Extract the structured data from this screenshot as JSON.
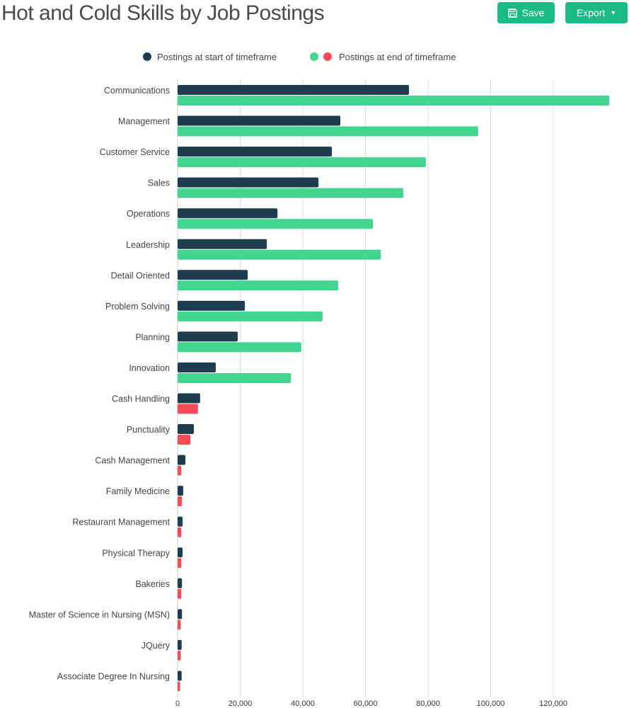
{
  "header": {
    "title": "Hot and Cold Skills by Job Postings",
    "save_label": "Save",
    "export_label": "Export"
  },
  "colors": {
    "start": "#1e3d4f",
    "end_up": "#43d590",
    "end_down": "#f64a57",
    "grid": "#dddddd"
  },
  "chart_data": {
    "type": "bar",
    "orientation": "horizontal",
    "title": "Hot and Cold Skills by Job Postings",
    "legend": [
      "Postings at start of timeframe",
      "Postings at end of timeframe"
    ],
    "legend_position": "top",
    "categories": [
      "Communications",
      "Management",
      "Customer Service",
      "Sales",
      "Operations",
      "Leadership",
      "Detail Oriented",
      "Problem Solving",
      "Planning",
      "Innovation",
      "Cash Handling",
      "Punctuality",
      "Cash Management",
      "Family Medicine",
      "Restaurant Management",
      "Physical Therapy",
      "Bakeries",
      "Master of Science in Nursing (MSN)",
      "JQuery",
      "Associate Degree In Nursing"
    ],
    "series": [
      {
        "name": "Postings at start of timeframe",
        "values": [
          73900,
          52000,
          49300,
          45000,
          31900,
          28500,
          22400,
          21500,
          19200,
          12200,
          7200,
          5200,
          2500,
          1800,
          1600,
          1600,
          1400,
          1400,
          1300,
          1300
        ]
      },
      {
        "name": "Postings at end of timeframe",
        "values": [
          137900,
          96000,
          79300,
          72100,
          62400,
          64900,
          51300,
          46300,
          39500,
          36200,
          6500,
          4100,
          1200,
          1400,
          1200,
          1200,
          1200,
          1000,
          1000,
          800
        ]
      }
    ],
    "xticks": [
      "0",
      "20,000",
      "40,000",
      "60,000",
      "80,000",
      "100,000",
      "120,000"
    ],
    "xtick_values": [
      0,
      20000,
      40000,
      60000,
      80000,
      100000,
      120000
    ],
    "xlim": [
      0,
      138000
    ],
    "grid": true
  }
}
